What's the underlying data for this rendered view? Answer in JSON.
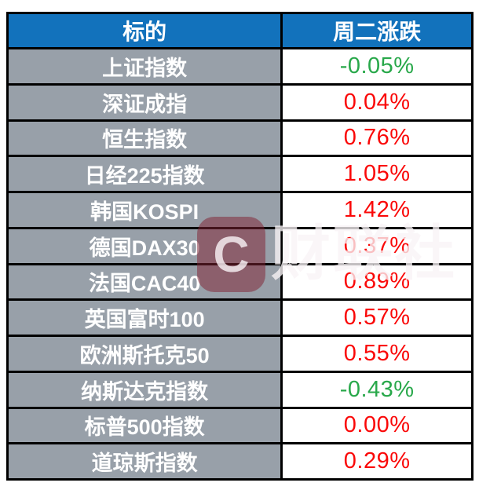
{
  "chart_data": {
    "type": "table",
    "columns": [
      {
        "label": "标的"
      },
      {
        "label": "周二涨跌"
      }
    ],
    "rows": [
      {
        "name": "上证指数",
        "change": "-0.05%",
        "color": "green"
      },
      {
        "name": "深证成指",
        "change": "0.04%",
        "color": "red"
      },
      {
        "name": "恒生指数",
        "change": "0.76%",
        "color": "red"
      },
      {
        "name": "日经225指数",
        "change": "1.05%",
        "color": "red"
      },
      {
        "name": "韩国KOSPI",
        "change": "1.42%",
        "color": "red"
      },
      {
        "name": "德国DAX30",
        "change": "0.37%",
        "color": "red"
      },
      {
        "name": "法国CAC40",
        "change": "0.89%",
        "color": "red"
      },
      {
        "name": "英国富时100",
        "change": "0.57%",
        "color": "red"
      },
      {
        "name": "欧洲斯托克50",
        "change": "0.55%",
        "color": "red"
      },
      {
        "name": "纳斯达克指数",
        "change": "-0.43%",
        "color": "green"
      },
      {
        "name": "标普500指数",
        "change": "0.00%",
        "color": "red"
      },
      {
        "name": "道琼斯指数",
        "change": "0.29%",
        "color": "red"
      }
    ]
  },
  "watermark": {
    "logo_glyph": "C",
    "text": "财联社"
  },
  "colors": {
    "header_bg": "#1272BC",
    "header_text": "#FFFFFF",
    "label_bg": "#98A0A9",
    "label_text": "#FFFFFF",
    "value_red": "#FA0808",
    "value_green": "#28A84A",
    "border": "#000000"
  }
}
